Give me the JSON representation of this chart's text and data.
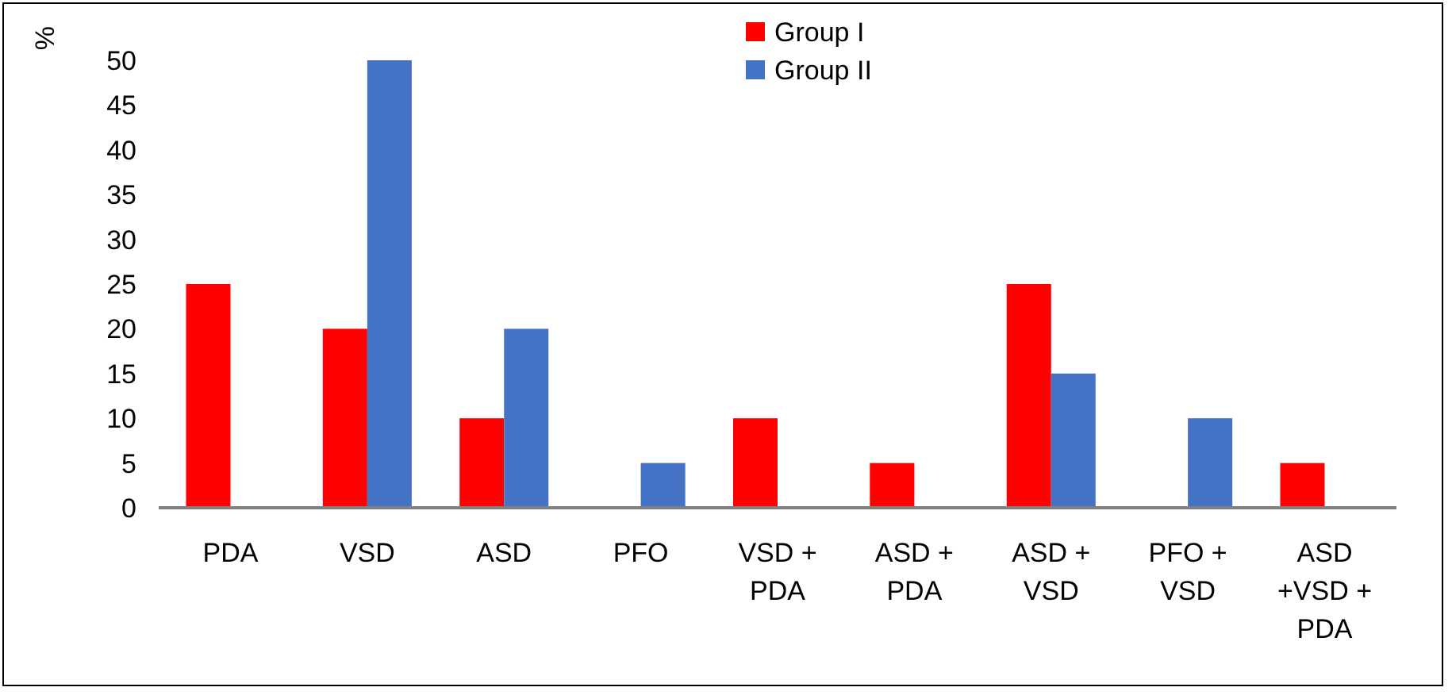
{
  "chart_data": {
    "type": "bar",
    "ylabel": "%",
    "categories": [
      "PDA",
      "VSD",
      "ASD",
      "PFO",
      "VSD + PDA",
      "ASD + PDA",
      "ASD + VSD",
      "PFO + VSD",
      "ASD +VSD + PDA"
    ],
    "series": [
      {
        "name": "Group I",
        "color": "#ff0000",
        "values": [
          25,
          20,
          10,
          0,
          10,
          5,
          25,
          0,
          5
        ]
      },
      {
        "name": "Group II",
        "color": "#4472c4",
        "values": [
          0,
          50,
          20,
          5,
          0,
          0,
          15,
          10,
          0
        ]
      }
    ],
    "ylim": [
      0,
      50
    ],
    "yticks": [
      0,
      5,
      10,
      15,
      20,
      25,
      30,
      35,
      40,
      45,
      50
    ],
    "grid": false,
    "legend": "top"
  }
}
